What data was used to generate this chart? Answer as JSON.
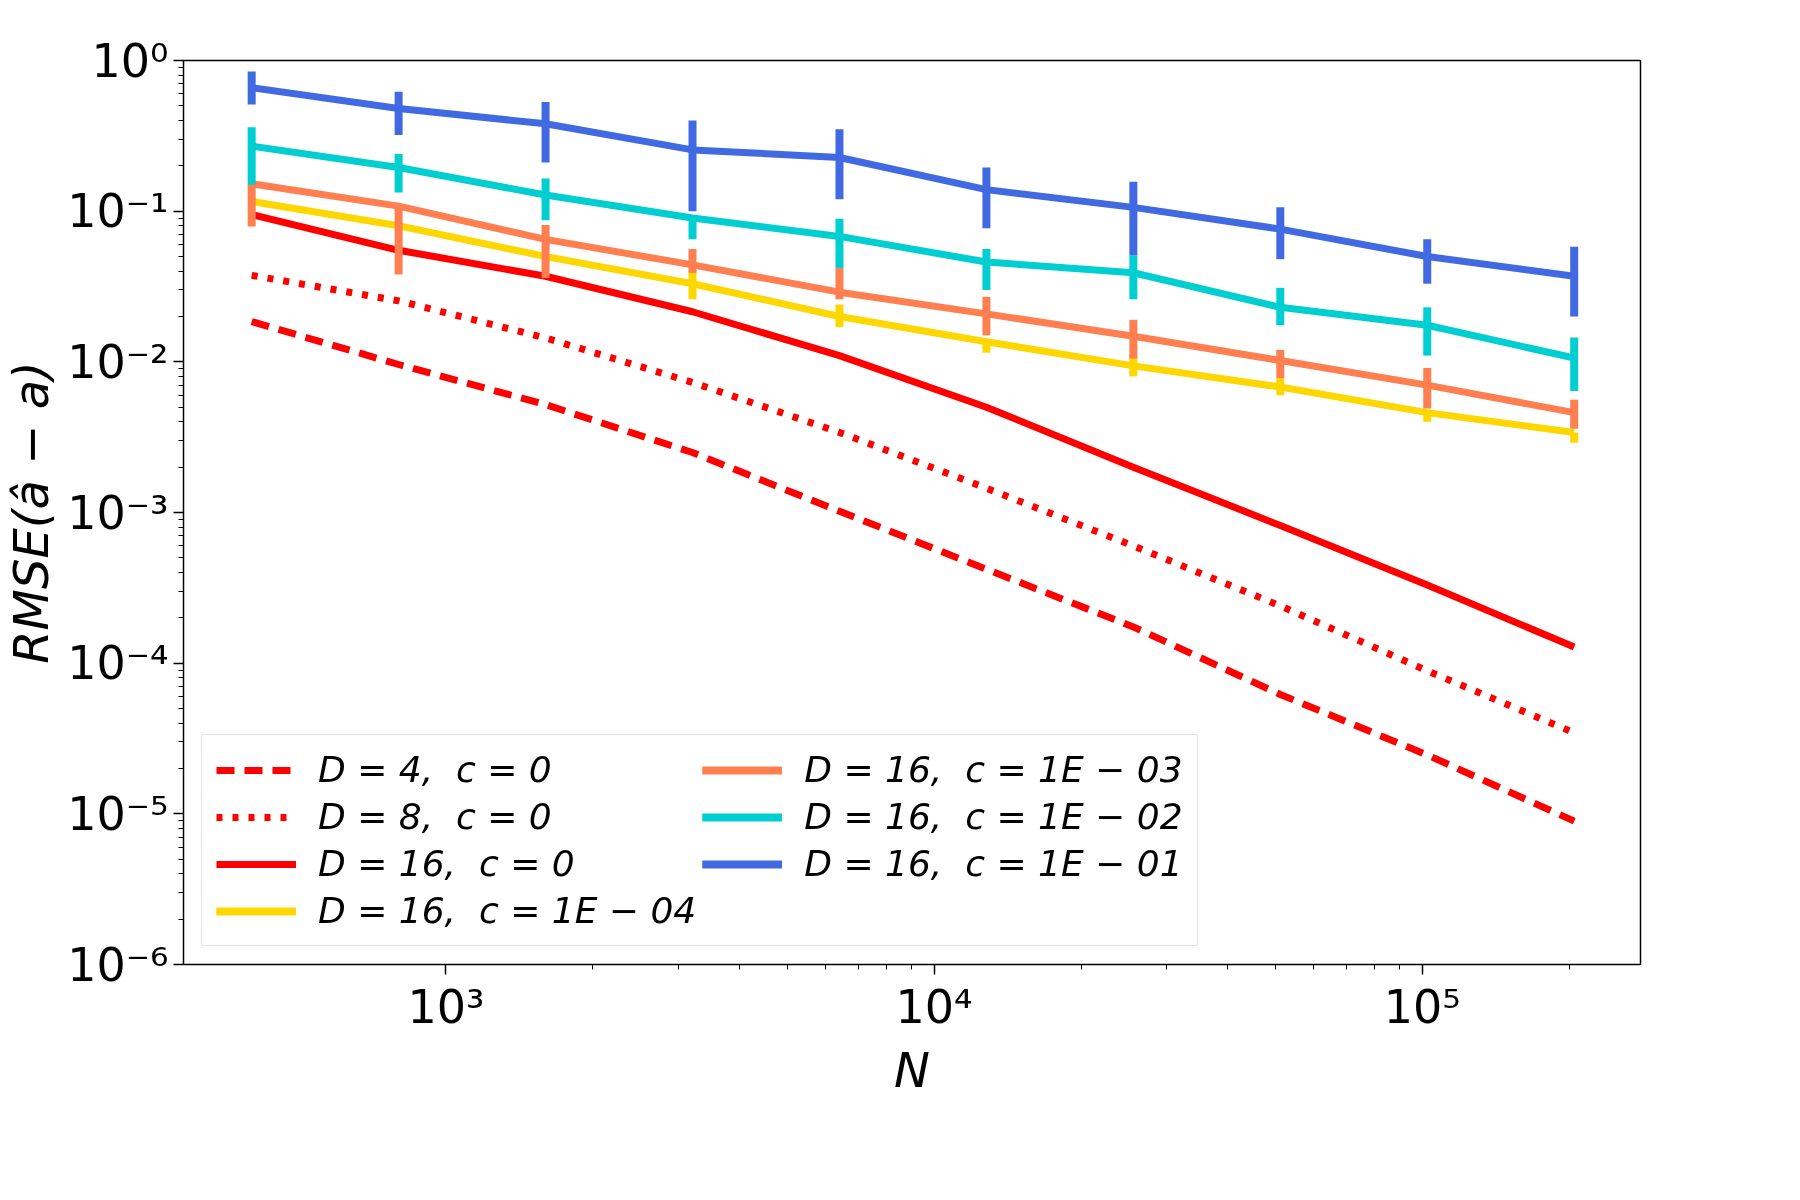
{
  "chart_data": {
    "type": "line",
    "xlabel": "N",
    "ylabel": "RMSE(â − a)",
    "x": [
      400,
      800,
      1600,
      3200,
      6400,
      12800,
      25600,
      51200,
      102400,
      204800
    ],
    "log": "xy",
    "xlim": [
      290,
      280000
    ],
    "ylim": [
      1e-06,
      1
    ],
    "xticks": [
      {
        "value": 1000,
        "label": "10³"
      },
      {
        "value": 10000,
        "label": "10⁴"
      },
      {
        "value": 100000,
        "label": "10⁵"
      }
    ],
    "yticks": [
      {
        "value": 1e-06,
        "label": "10⁻⁶"
      },
      {
        "value": 1e-05,
        "label": "10⁻⁵"
      },
      {
        "value": 0.0001,
        "label": "10⁻⁴"
      },
      {
        "value": 0.001,
        "label": "10⁻³"
      },
      {
        "value": 0.01,
        "label": "10⁻²"
      },
      {
        "value": 0.1,
        "label": "10⁻¹"
      },
      {
        "value": 1,
        "label": "10⁰"
      }
    ],
    "grid": false,
    "legend": "bottom left",
    "marker": "none",
    "series": [
      {
        "name": "D = 4,  c = 0",
        "color": "#ff0000",
        "line_style": "dashed",
        "values": [
          0.0185,
          0.0096,
          0.0052,
          0.0025,
          0.00102,
          0.00042,
          0.000174,
          6.2e-05,
          2.46e-05,
          8.95e-06
        ]
      },
      {
        "name": "D = 8,  c = 0",
        "color": "#ff0000",
        "line_style": "dotted",
        "values": [
          0.0375,
          0.0254,
          0.0144,
          0.0073,
          0.0034,
          0.00145,
          0.0006,
          0.00024,
          8.9e-05,
          3.45e-05
        ]
      },
      {
        "name": "D = 16,  c = 0",
        "color": "#ff0000",
        "line_style": "solid",
        "values": [
          0.095,
          0.055,
          0.037,
          0.0215,
          0.011,
          0.005,
          0.002,
          0.00082,
          0.00033,
          0.000128
        ]
      },
      {
        "name": "D = 16,  c = 1E − 04",
        "color": "#ffd700",
        "line_style": "solid",
        "values": [
          0.116,
          0.08,
          0.05,
          0.033,
          0.02,
          0.0136,
          0.0094,
          0.0068,
          0.0046,
          0.0034
        ],
        "errors": [
          null,
          null,
          null,
          [
            0.026,
            0.04
          ],
          [
            0.017,
            0.024
          ],
          [
            0.0115,
            0.0136
          ],
          [
            0.008,
            0.011
          ],
          [
            0.006,
            0.0078
          ],
          [
            0.004,
            0.0046
          ],
          [
            0.0029,
            0.0034
          ]
        ]
      },
      {
        "name": "D = 16,  c = 1E − 03",
        "color": "#ff7f50",
        "line_style": "solid",
        "values": [
          0.152,
          0.108,
          0.065,
          0.044,
          0.029,
          0.0208,
          0.0148,
          0.0102,
          0.007,
          0.0046
        ],
        "errors": [
          [
            0.079,
            0.152
          ],
          [
            0.038,
            0.108
          ],
          [
            0.036,
            0.081
          ],
          [
            0.039,
            0.056
          ],
          [
            0.026,
            0.042
          ],
          [
            0.015,
            0.027
          ],
          [
            0.0105,
            0.019
          ],
          [
            0.0078,
            0.012
          ],
          [
            0.0049,
            0.0091
          ],
          [
            0.0036,
            0.0056
          ]
        ]
      },
      {
        "name": "D = 16,  c = 1E − 02",
        "color": "#00ced1",
        "line_style": "solid",
        "values": [
          0.27,
          0.195,
          0.128,
          0.09,
          0.068,
          0.046,
          0.039,
          0.023,
          0.0175,
          0.0106
        ],
        "errors": [
          [
            0.15,
            0.36
          ],
          [
            0.133,
            0.24
          ],
          [
            0.087,
            0.165
          ],
          [
            0.065,
            0.09
          ],
          [
            0.042,
            0.089
          ],
          [
            0.03,
            0.056
          ],
          [
            0.026,
            0.051
          ],
          [
            0.0175,
            0.031
          ],
          [
            0.011,
            0.023
          ],
          [
            0.0064,
            0.0145
          ]
        ]
      },
      {
        "name": "D = 16,  c = 1E − 01",
        "color": "#4169e1",
        "line_style": "solid",
        "values": [
          0.66,
          0.48,
          0.38,
          0.255,
          0.227,
          0.139,
          0.106,
          0.076,
          0.05,
          0.037
        ],
        "errors": [
          [
            0.51,
            0.845
          ],
          [
            0.32,
            0.62
          ],
          [
            0.21,
            0.53
          ],
          [
            0.1,
            0.4
          ],
          [
            0.12,
            0.35
          ],
          [
            0.077,
            0.195
          ],
          [
            0.051,
            0.157
          ],
          [
            0.048,
            0.106
          ],
          [
            0.033,
            0.065
          ],
          [
            0.02,
            0.058
          ]
        ]
      }
    ]
  }
}
